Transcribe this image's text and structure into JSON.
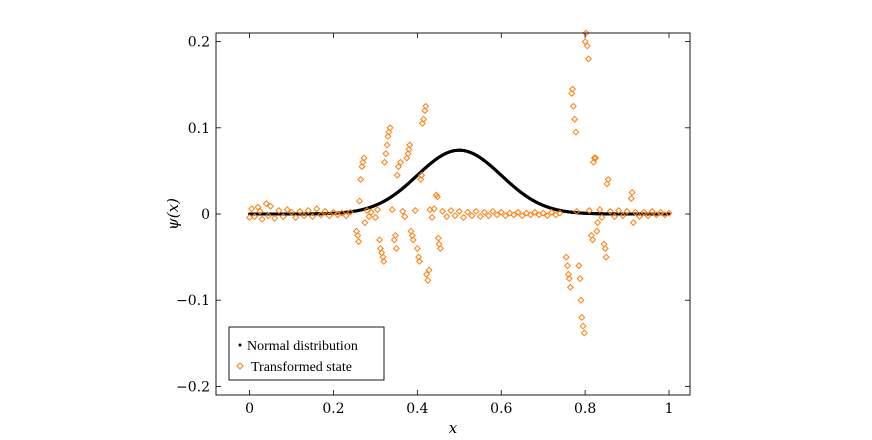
{
  "chart_data": {
    "type": "scatter",
    "xlabel": "x",
    "ylabel": "ψ(x)",
    "xlim": [
      -0.08,
      1.05
    ],
    "ylim": [
      -0.21,
      0.21
    ],
    "xticks": [
      0,
      0.2,
      0.4,
      0.6,
      0.8,
      1
    ],
    "xtick_labels": [
      "0",
      "0.2",
      "0.4",
      "0.6",
      "0.8",
      "1"
    ],
    "yticks": [
      -0.2,
      -0.1,
      0,
      0.1,
      0.2
    ],
    "ytick_labels": [
      "−0.2",
      "−0.1",
      "0",
      "0.1",
      "0.2"
    ],
    "grid": false,
    "legend_position": "bottom-left",
    "series": [
      {
        "name": "Normal distribution",
        "marker": "dot",
        "color": "#000000",
        "distribution": {
          "mean": 0.5,
          "std": 0.1,
          "peak": 0.074,
          "x_range": [
            0,
            1
          ],
          "samples": 1024
        }
      },
      {
        "name": "Transformed state",
        "marker": "diamond",
        "color": "#ff7f0e",
        "points": [
          [
            0.0,
            -0.004
          ],
          [
            0.005,
            0.006
          ],
          [
            0.012,
            -0.003
          ],
          [
            0.02,
            0.008
          ],
          [
            0.025,
            0.003
          ],
          [
            0.03,
            -0.006
          ],
          [
            0.04,
            0.012
          ],
          [
            0.045,
            -0.002
          ],
          [
            0.05,
            0.009
          ],
          [
            0.06,
            -0.005
          ],
          [
            0.07,
            0.004
          ],
          [
            0.08,
            -0.003
          ],
          [
            0.09,
            0.005
          ],
          [
            0.1,
            0.002
          ],
          [
            0.11,
            -0.004
          ],
          [
            0.12,
            0.003
          ],
          [
            0.13,
            -0.002
          ],
          [
            0.14,
            0.004
          ],
          [
            0.15,
            -0.003
          ],
          [
            0.16,
            0.006
          ],
          [
            0.17,
            -0.001
          ],
          [
            0.18,
            0.003
          ],
          [
            0.19,
            -0.002
          ],
          [
            0.2,
            0.002
          ],
          [
            0.21,
            -0.001
          ],
          [
            0.22,
            0.001
          ],
          [
            0.23,
            -0.002
          ],
          [
            0.24,
            0.002
          ],
          [
            0.255,
            -0.02
          ],
          [
            0.258,
            -0.025
          ],
          [
            0.26,
            -0.032
          ],
          [
            0.262,
            0.015
          ],
          [
            0.265,
            0.04
          ],
          [
            0.268,
            0.055
          ],
          [
            0.27,
            0.06
          ],
          [
            0.273,
            0.065
          ],
          [
            0.275,
            -0.01
          ],
          [
            0.28,
            0.004
          ],
          [
            0.285,
            -0.003
          ],
          [
            0.29,
            0.002
          ],
          [
            0.3,
            -0.004
          ],
          [
            0.305,
            0.005
          ],
          [
            0.31,
            -0.03
          ],
          [
            0.312,
            -0.04
          ],
          [
            0.315,
            -0.045
          ],
          [
            0.318,
            -0.05
          ],
          [
            0.32,
            -0.055
          ],
          [
            0.322,
            0.06
          ],
          [
            0.325,
            0.07
          ],
          [
            0.328,
            0.08
          ],
          [
            0.33,
            0.09
          ],
          [
            0.332,
            0.095
          ],
          [
            0.335,
            0.1
          ],
          [
            0.34,
            0.005
          ],
          [
            0.345,
            -0.03
          ],
          [
            0.348,
            -0.025
          ],
          [
            0.35,
            -0.04
          ],
          [
            0.352,
            0.045
          ],
          [
            0.355,
            0.055
          ],
          [
            0.36,
            0.06
          ],
          [
            0.365,
            0.003
          ],
          [
            0.37,
            -0.003
          ],
          [
            0.375,
            0.065
          ],
          [
            0.378,
            0.07
          ],
          [
            0.38,
            0.075
          ],
          [
            0.382,
            0.08
          ],
          [
            0.385,
            -0.02
          ],
          [
            0.388,
            -0.025
          ],
          [
            0.39,
            -0.03
          ],
          [
            0.395,
            0.004
          ],
          [
            0.4,
            -0.04
          ],
          [
            0.403,
            -0.05
          ],
          [
            0.405,
            -0.055
          ],
          [
            0.408,
            0.04
          ],
          [
            0.41,
            0.045
          ],
          [
            0.412,
            0.105
          ],
          [
            0.415,
            0.11
          ],
          [
            0.418,
            0.12
          ],
          [
            0.42,
            0.125
          ],
          [
            0.422,
            -0.07
          ],
          [
            0.425,
            -0.077
          ],
          [
            0.428,
            -0.065
          ],
          [
            0.43,
            0.005
          ],
          [
            0.435,
            -0.004
          ],
          [
            0.44,
            0.006
          ],
          [
            0.445,
            0.022
          ],
          [
            0.448,
            0.02
          ],
          [
            0.45,
            -0.028
          ],
          [
            0.452,
            -0.035
          ],
          [
            0.455,
            -0.04
          ],
          [
            0.46,
            0.003
          ],
          [
            0.47,
            -0.003
          ],
          [
            0.48,
            0.004
          ],
          [
            0.49,
            -0.002
          ],
          [
            0.5,
            0.003
          ],
          [
            0.51,
            -0.004
          ],
          [
            0.52,
            0.002
          ],
          [
            0.53,
            -0.002
          ],
          [
            0.54,
            0.003
          ],
          [
            0.55,
            -0.003
          ],
          [
            0.56,
            0.002
          ],
          [
            0.57,
            -0.002
          ],
          [
            0.58,
            0.003
          ],
          [
            0.59,
            -0.001
          ],
          [
            0.6,
            0.002
          ],
          [
            0.61,
            -0.002
          ],
          [
            0.62,
            0.001
          ],
          [
            0.63,
            -0.001
          ],
          [
            0.64,
            0.002
          ],
          [
            0.65,
            -0.002
          ],
          [
            0.66,
            0.001
          ],
          [
            0.67,
            -0.001
          ],
          [
            0.68,
            0.002
          ],
          [
            0.69,
            -0.001
          ],
          [
            0.7,
            0.001
          ],
          [
            0.71,
            -0.002
          ],
          [
            0.72,
            0.002
          ],
          [
            0.73,
            -0.001
          ],
          [
            0.74,
            0.001
          ],
          [
            0.755,
            -0.05
          ],
          [
            0.758,
            -0.06
          ],
          [
            0.76,
            -0.07
          ],
          [
            0.762,
            -0.075
          ],
          [
            0.765,
            -0.085
          ],
          [
            0.768,
            0.14
          ],
          [
            0.77,
            0.145
          ],
          [
            0.772,
            0.125
          ],
          [
            0.775,
            0.11
          ],
          [
            0.778,
            0.095
          ],
          [
            0.78,
            0.003
          ],
          [
            0.785,
            -0.06
          ],
          [
            0.788,
            -0.075
          ],
          [
            0.79,
            -0.1
          ],
          [
            0.792,
            -0.12
          ],
          [
            0.795,
            -0.13
          ],
          [
            0.798,
            -0.138
          ],
          [
            0.8,
            0.2
          ],
          [
            0.802,
            0.21
          ],
          [
            0.805,
            0.195
          ],
          [
            0.808,
            0.18
          ],
          [
            0.81,
            0.004
          ],
          [
            0.815,
            -0.025
          ],
          [
            0.818,
            -0.03
          ],
          [
            0.82,
            0.06
          ],
          [
            0.822,
            0.065
          ],
          [
            0.825,
            0.065
          ],
          [
            0.828,
            -0.02
          ],
          [
            0.83,
            -0.01
          ],
          [
            0.835,
            0.005
          ],
          [
            0.84,
            -0.004
          ],
          [
            0.845,
            -0.035
          ],
          [
            0.848,
            -0.04
          ],
          [
            0.85,
            -0.05
          ],
          [
            0.852,
            0.035
          ],
          [
            0.855,
            0.04
          ],
          [
            0.86,
            0.003
          ],
          [
            0.87,
            -0.003
          ],
          [
            0.88,
            0.004
          ],
          [
            0.89,
            -0.002
          ],
          [
            0.9,
            0.003
          ],
          [
            0.91,
            0.018
          ],
          [
            0.912,
            0.025
          ],
          [
            0.915,
            -0.01
          ],
          [
            0.92,
            0.002
          ],
          [
            0.93,
            -0.003
          ],
          [
            0.94,
            0.002
          ],
          [
            0.95,
            -0.002
          ],
          [
            0.96,
            0.003
          ],
          [
            0.97,
            -0.001
          ],
          [
            0.98,
            0.002
          ],
          [
            0.99,
            -0.001
          ],
          [
            1.0,
            0.001
          ]
        ]
      }
    ]
  }
}
